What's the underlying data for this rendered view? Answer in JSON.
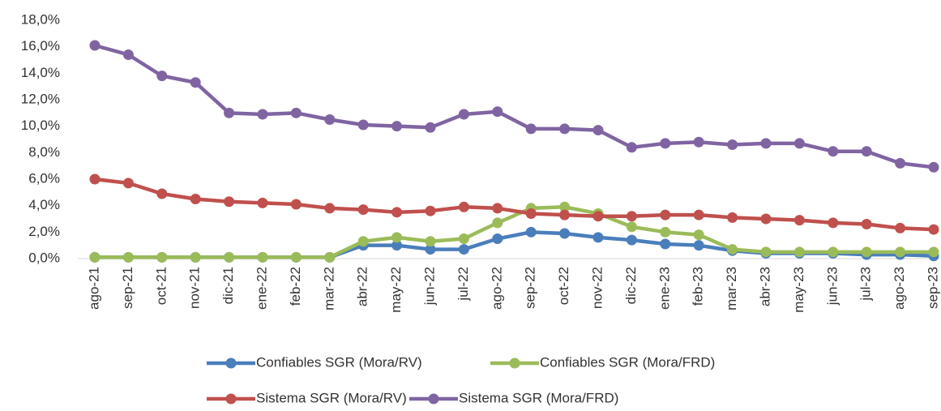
{
  "chart_data": {
    "type": "line",
    "categories": [
      "ago-21",
      "sep-21",
      "oct-21",
      "nov-21",
      "dic-21",
      "ene-22",
      "feb-22",
      "mar-22",
      "abr-22",
      "may-22",
      "jun-22",
      "jul-22",
      "ago-22",
      "sep-22",
      "oct-22",
      "nov-22",
      "dic-22",
      "ene-23",
      "feb-23",
      "mar-23",
      "abr-23",
      "may-23",
      "jun-23",
      "jul-23",
      "ago-23",
      "sep-23"
    ],
    "series": [
      {
        "name": "Confiables SGR (Mora/RV)",
        "color": "#4a7ebb",
        "values": [
          0.1,
          0.1,
          0.1,
          0.1,
          0.1,
          0.1,
          0.1,
          0.1,
          1.0,
          1.0,
          0.7,
          0.7,
          1.5,
          2.0,
          1.9,
          1.6,
          1.4,
          1.1,
          1.0,
          0.6,
          0.4,
          0.4,
          0.4,
          0.3,
          0.3,
          0.2
        ]
      },
      {
        "name": "Confiables SGR (Mora/FRD)",
        "color": "#9bbb59",
        "values": [
          0.1,
          0.1,
          0.1,
          0.1,
          0.1,
          0.1,
          0.1,
          0.1,
          1.3,
          1.6,
          1.3,
          1.5,
          2.7,
          3.8,
          3.9,
          3.4,
          2.4,
          2.0,
          1.8,
          0.7,
          0.5,
          0.5,
          0.5,
          0.5,
          0.5,
          0.5
        ]
      },
      {
        "name": "Sistema SGR (Mora/RV)",
        "color": "#c0504d",
        "values": [
          6.0,
          5.7,
          4.9,
          4.5,
          4.3,
          4.2,
          4.1,
          3.8,
          3.7,
          3.5,
          3.6,
          3.9,
          3.8,
          3.4,
          3.3,
          3.2,
          3.2,
          3.3,
          3.3,
          3.1,
          3.0,
          2.9,
          2.7,
          2.6,
          2.3,
          2.2
        ]
      },
      {
        "name": "Sistema SGR (Mora/FRD)",
        "color": "#8064a2",
        "values": [
          16.1,
          15.4,
          13.8,
          13.3,
          11.0,
          10.9,
          11.0,
          10.5,
          10.1,
          10.0,
          9.9,
          10.9,
          11.1,
          9.8,
          9.8,
          9.7,
          8.4,
          8.7,
          8.8,
          8.6,
          8.7,
          8.7,
          8.1,
          8.1,
          7.2,
          6.9
        ]
      }
    ],
    "ylim": [
      0,
      18
    ],
    "yticks": [
      {
        "value": 0,
        "label": "0,0%"
      },
      {
        "value": 2,
        "label": "2,0%"
      },
      {
        "value": 4,
        "label": "4,0%"
      },
      {
        "value": 6,
        "label": "6,0%"
      },
      {
        "value": 8,
        "label": "8,0%"
      },
      {
        "value": 10,
        "label": "10,0%"
      },
      {
        "value": 12,
        "label": "12,0%"
      },
      {
        "value": 14,
        "label": "14,0%"
      },
      {
        "value": 16,
        "label": "16,0%"
      },
      {
        "value": 18,
        "label": "18,0%"
      }
    ],
    "grid": false,
    "legend": "bottom"
  }
}
